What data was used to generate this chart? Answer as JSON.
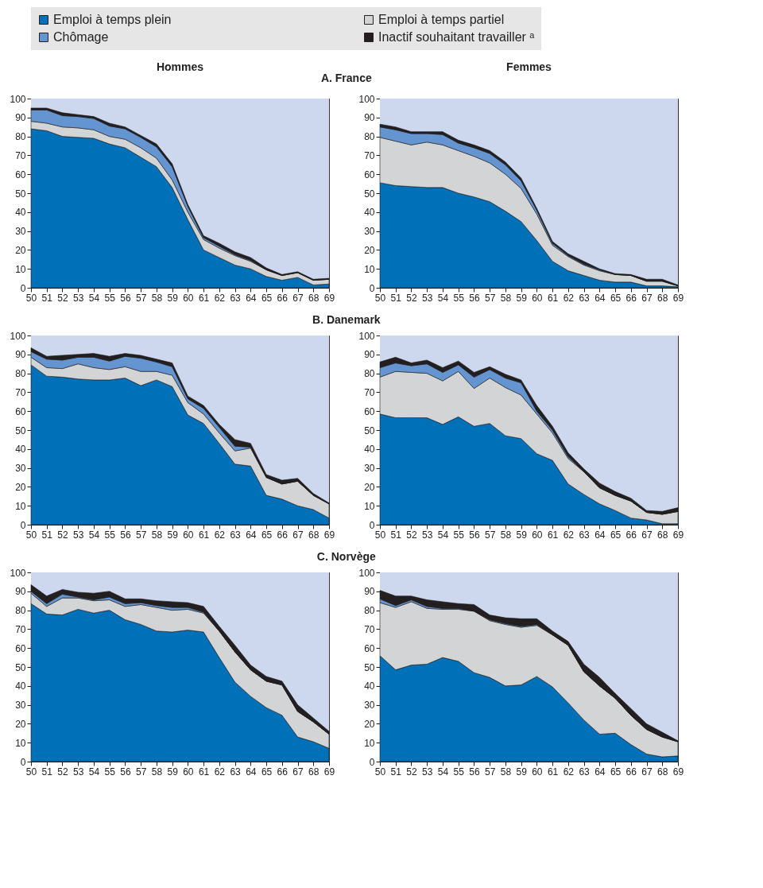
{
  "chart_data": [
    {
      "type": "area",
      "stacked": true,
      "legend": "top",
      "bands": [
        {
          "axis": "y",
          "from": 0,
          "to": 100,
          "color": "#cdd8ee"
        }
      ],
      "title": "A. France",
      "subtitle": "Hommes",
      "categories": [
        "50",
        "51",
        "52",
        "53",
        "54",
        "55",
        "56",
        "57",
        "58",
        "59",
        "60",
        "61",
        "62",
        "63",
        "64",
        "65",
        "66",
        "67",
        "68",
        "69"
      ],
      "ylim": [
        0,
        100
      ],
      "yticks": [
        0,
        10,
        20,
        30,
        40,
        50,
        60,
        70,
        80,
        90,
        100
      ],
      "series": [
        {
          "name": "Emploi à temps plein",
          "color": "#0070b8",
          "values": [
            84,
            83,
            80,
            79.5,
            79,
            76,
            74,
            69,
            64,
            53,
            36,
            20,
            16,
            12,
            10,
            6,
            4,
            5.5,
            1.5,
            2
          ]
        },
        {
          "name": "Emploi à temps partiel",
          "color": "#d3d4d6",
          "values": [
            4,
            4,
            5,
            5,
            4.5,
            4,
            4.5,
            5,
            4.5,
            4,
            4,
            5.5,
            5,
            5,
            4,
            3.5,
            2.5,
            2.5,
            2.5,
            2.5
          ]
        },
        {
          "name": "Chômage",
          "color": "#6495d0",
          "values": [
            6,
            7,
            6,
            6,
            6,
            5.5,
            5.5,
            5.5,
            6,
            7,
            3,
            1,
            1,
            0.5,
            0.5,
            0,
            0,
            0,
            0,
            0
          ]
        },
        {
          "name": "Inactif souhaitant travailler ᵃ",
          "color": "#231f20",
          "values": [
            1,
            1,
            1.5,
            1,
            1,
            1.5,
            1,
            1,
            1.5,
            1.5,
            1,
            1,
            1.5,
            1.5,
            1.5,
            1,
            0.5,
            0.5,
            0.5,
            0.5
          ]
        }
      ]
    },
    {
      "type": "area",
      "stacked": true,
      "bands": [
        {
          "axis": "y",
          "from": 0,
          "to": 100,
          "color": "#cdd8ee"
        }
      ],
      "subtitle": "Femmes",
      "categories": [
        "50",
        "51",
        "52",
        "53",
        "54",
        "55",
        "56",
        "57",
        "58",
        "59",
        "60",
        "61",
        "62",
        "63",
        "64",
        "65",
        "66",
        "67",
        "68",
        "69"
      ],
      "ylim": [
        0,
        100
      ],
      "yticks": [
        0,
        10,
        20,
        30,
        40,
        50,
        60,
        70,
        80,
        90,
        100
      ],
      "series": [
        {
          "name": "Emploi à temps plein",
          "color": "#0070b8",
          "values": [
            55.5,
            54,
            53.5,
            53,
            53,
            50,
            48,
            45.5,
            40.5,
            35,
            25,
            14,
            9,
            6.5,
            4,
            3,
            3,
            1,
            1,
            0.5
          ]
        },
        {
          "name": "Emploi à temps partiel",
          "color": "#d3d4d6",
          "values": [
            24,
            23.5,
            22,
            24,
            22.5,
            22.5,
            21.5,
            20.5,
            19.5,
            17.5,
            14,
            8.5,
            7.5,
            5.5,
            5,
            4,
            3.5,
            2.5,
            2.5,
            0.5
          ]
        },
        {
          "name": "Chômage",
          "color": "#6495d0",
          "values": [
            5.5,
            6,
            6,
            4.5,
            5.5,
            4,
            4.5,
            5,
            5,
            4,
            2,
            1,
            0.5,
            0.5,
            0.5,
            0,
            0,
            0,
            0,
            0
          ]
        },
        {
          "name": "Inactif souhaitant travailler ᵃ",
          "color": "#231f20",
          "values": [
            1.5,
            1.5,
            1,
            1,
            1.5,
            1.5,
            1.5,
            1.5,
            1.5,
            1.5,
            1,
            1,
            1,
            1.5,
            0.5,
            0.5,
            0.5,
            1,
            1,
            0.5
          ]
        }
      ]
    },
    {
      "type": "area",
      "stacked": true,
      "bands": [
        {
          "axis": "y",
          "from": 0,
          "to": 100,
          "color": "#cdd8ee"
        }
      ],
      "title": "B. Danemark",
      "categories": [
        "50",
        "51",
        "52",
        "53",
        "54",
        "55",
        "56",
        "57",
        "58",
        "59",
        "60",
        "61",
        "62",
        "63",
        "64",
        "65",
        "66",
        "67",
        "68",
        "69"
      ],
      "ylim": [
        0,
        100
      ],
      "yticks": [
        0,
        10,
        20,
        30,
        40,
        50,
        60,
        70,
        80,
        90,
        100
      ],
      "series": [
        {
          "name": "Emploi à temps plein",
          "color": "#0070b8",
          "values": [
            84.5,
            78.5,
            78,
            77,
            76.5,
            76.5,
            77.5,
            73.5,
            76.5,
            73,
            58,
            53.5,
            43,
            32,
            31,
            15.5,
            13.5,
            10,
            8,
            3.5
          ]
        },
        {
          "name": "Emploi à temps partiel",
          "color": "#d3d4d6",
          "values": [
            4,
            4.5,
            4.5,
            8,
            6.5,
            5.5,
            6,
            7.5,
            4.5,
            6,
            6.5,
            5,
            5.5,
            7,
            9.5,
            9.5,
            8,
            13,
            7.5,
            7.5
          ]
        },
        {
          "name": "Chômage",
          "color": "#6495d0",
          "values": [
            3,
            4.5,
            4.5,
            3.5,
            5.5,
            4.5,
            5.5,
            7,
            5,
            4.5,
            2,
            3,
            3,
            2.5,
            0.5,
            0,
            0,
            0,
            0,
            0
          ]
        },
        {
          "name": "Inactif souhaitant travailler ᵃ",
          "color": "#231f20",
          "values": [
            2,
            1.5,
            2.5,
            1.5,
            2,
            2.5,
            1.5,
            1.5,
            1.5,
            2,
            1.5,
            1.5,
            1.5,
            3.5,
            2,
            1.5,
            2,
            1.5,
            1,
            0.5
          ]
        }
      ]
    },
    {
      "type": "area",
      "stacked": true,
      "bands": [
        {
          "axis": "y",
          "from": 0,
          "to": 100,
          "color": "#cdd8ee"
        }
      ],
      "categories": [
        "50",
        "51",
        "52",
        "53",
        "54",
        "55",
        "56",
        "57",
        "58",
        "59",
        "60",
        "61",
        "62",
        "63",
        "64",
        "65",
        "66",
        "67",
        "68",
        "69"
      ],
      "ylim": [
        0,
        100
      ],
      "yticks": [
        0,
        10,
        20,
        30,
        40,
        50,
        60,
        70,
        80,
        90,
        100
      ],
      "series": [
        {
          "name": "Emploi à temps plein",
          "color": "#0070b8",
          "values": [
            58.5,
            56.5,
            56.5,
            56.5,
            53,
            57,
            52,
            53.5,
            47,
            45.5,
            37.5,
            34,
            21.5,
            16,
            11,
            7.5,
            3.5,
            2.5,
            0.5,
            0.5
          ]
        },
        {
          "name": "Emploi à temps partiel",
          "color": "#d3d4d6",
          "values": [
            19.5,
            24.5,
            24,
            23.5,
            23,
            24,
            20,
            24,
            25.5,
            23,
            21,
            14.5,
            13.5,
            12,
            8.5,
            8,
            9,
            4,
            5,
            6.5
          ]
        },
        {
          "name": "Chômage",
          "color": "#6495d0",
          "values": [
            5,
            4.5,
            3.5,
            5,
            4.5,
            3.5,
            6,
            4.5,
            5,
            6.5,
            1.5,
            1.5,
            1,
            0,
            0,
            0,
            0,
            0,
            0,
            0
          ]
        },
        {
          "name": "Inactif souhaitant travailler ᵃ",
          "color": "#231f20",
          "values": [
            3,
            3,
            1.5,
            2,
            2.5,
            2,
            2.5,
            1.5,
            2,
            1.5,
            3,
            2,
            2,
            1.5,
            2.5,
            2,
            1.5,
            1,
            1.5,
            2
          ]
        }
      ]
    },
    {
      "type": "area",
      "stacked": true,
      "bands": [
        {
          "axis": "y",
          "from": 0,
          "to": 100,
          "color": "#cdd8ee"
        }
      ],
      "title": "C. Norvège",
      "categories": [
        "50",
        "51",
        "52",
        "53",
        "54",
        "55",
        "56",
        "57",
        "58",
        "59",
        "60",
        "61",
        "62",
        "63",
        "64",
        "65",
        "66",
        "67",
        "68",
        "69"
      ],
      "ylim": [
        0,
        100
      ],
      "yticks": [
        0,
        10,
        20,
        30,
        40,
        50,
        60,
        70,
        80,
        90,
        100
      ],
      "series": [
        {
          "name": "Emploi à temps plein",
          "color": "#0070b8",
          "values": [
            83.5,
            78,
            77.5,
            80.5,
            78.5,
            80,
            75,
            72.5,
            69,
            68.5,
            69.5,
            68.5,
            55,
            42,
            34.5,
            28.5,
            24.5,
            13,
            10.5,
            7
          ]
        },
        {
          "name": "Emploi à temps partiel",
          "color": "#d3d4d6",
          "values": [
            5.5,
            4,
            9,
            6,
            6.5,
            5.5,
            7,
            10.5,
            12.5,
            11.5,
            11,
            10,
            14,
            16,
            14,
            14,
            16,
            13.5,
            10.5,
            7.5
          ]
        },
        {
          "name": "Chômage",
          "color": "#6495d0",
          "values": [
            1,
            1.5,
            2,
            0.5,
            0.5,
            1.5,
            1.5,
            1,
            1,
            1.5,
            1,
            0.5,
            0,
            0,
            0,
            0,
            0,
            0,
            0,
            0
          ]
        },
        {
          "name": "Inactif souhaitant travailler ᵃ",
          "color": "#231f20",
          "values": [
            3.5,
            4,
            2.5,
            2.5,
            3.5,
            3,
            2.5,
            2,
            2.5,
            3,
            2.5,
            3,
            2.5,
            3.5,
            2.5,
            2.5,
            2,
            3.5,
            2,
            1.5
          ]
        }
      ]
    },
    {
      "type": "area",
      "stacked": true,
      "bands": [
        {
          "axis": "y",
          "from": 0,
          "to": 100,
          "color": "#cdd8ee"
        }
      ],
      "categories": [
        "50",
        "51",
        "52",
        "53",
        "54",
        "55",
        "56",
        "57",
        "58",
        "59",
        "60",
        "61",
        "62",
        "63",
        "64",
        "65",
        "66",
        "67",
        "68",
        "69"
      ],
      "ylim": [
        0,
        100
      ],
      "yticks": [
        0,
        10,
        20,
        30,
        40,
        50,
        60,
        70,
        80,
        90,
        100
      ],
      "series": [
        {
          "name": "Emploi à temps plein",
          "color": "#0070b8",
          "values": [
            56,
            48.5,
            51,
            51.5,
            55,
            53,
            47,
            44.5,
            40,
            40.5,
            45,
            39.5,
            31,
            22,
            14.5,
            15,
            9,
            4,
            2.5,
            3
          ]
        },
        {
          "name": "Emploi à temps partiel",
          "color": "#d3d4d6",
          "values": [
            28,
            33,
            33.5,
            29.5,
            25.5,
            27.5,
            32.5,
            30,
            32.5,
            30.5,
            27,
            27.5,
            30.5,
            25.5,
            25.5,
            18.5,
            15.5,
            13,
            10.5,
            7.5
          ]
        },
        {
          "name": "Chômage",
          "color": "#6495d0",
          "values": [
            2,
            1,
            1,
            1,
            0.5,
            0.5,
            0,
            0.5,
            0.5,
            0.5,
            0.5,
            0,
            0,
            0,
            0,
            0,
            0,
            0,
            0,
            0
          ]
        },
        {
          "name": "Inactif souhaitant travailler ᵃ",
          "color": "#231f20",
          "values": [
            4.5,
            5,
            2,
            3.5,
            3.5,
            2.5,
            3.5,
            2.5,
            3,
            4,
            3,
            2,
            2,
            4,
            4.5,
            2.5,
            3.5,
            3,
            2.5,
            0.5
          ]
        }
      ]
    }
  ]
}
